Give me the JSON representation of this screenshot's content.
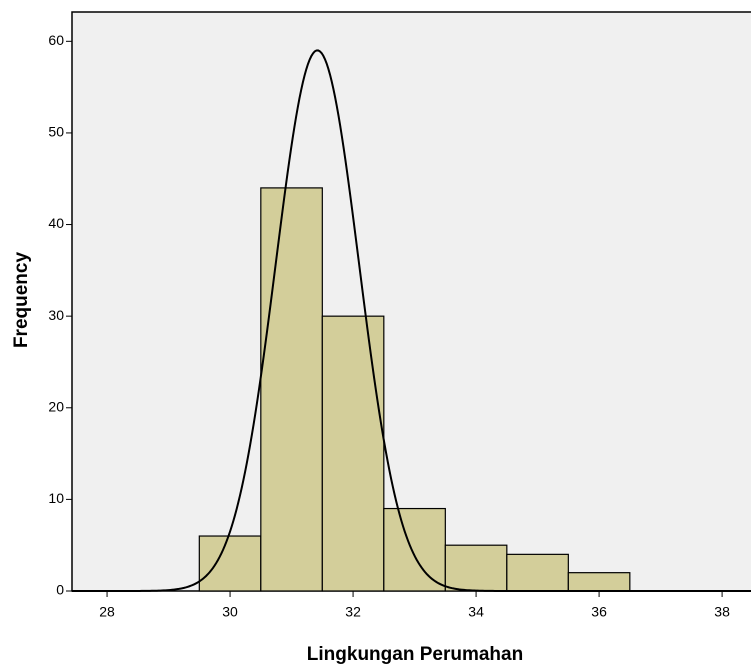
{
  "chart_data": {
    "type": "histogram",
    "x_label": "Lingkungan Perumahan",
    "y_label": "Frequency",
    "bins": [
      29.5,
      30.5,
      31.5,
      32.5,
      33.5,
      34.5,
      35.5,
      36.5
    ],
    "values": [
      6,
      44,
      30,
      9,
      5,
      4,
      2
    ],
    "color": "#d3ce9a",
    "curve": {
      "mean": 31.42,
      "std": 0.676
    },
    "xlim": [
      27.43,
      38.47
    ],
    "ylim": [
      0,
      63.2
    ],
    "xticks": [
      28,
      30,
      32,
      34,
      36,
      38
    ],
    "yticks": [
      0,
      10,
      20,
      30,
      40,
      50,
      60
    ]
  }
}
